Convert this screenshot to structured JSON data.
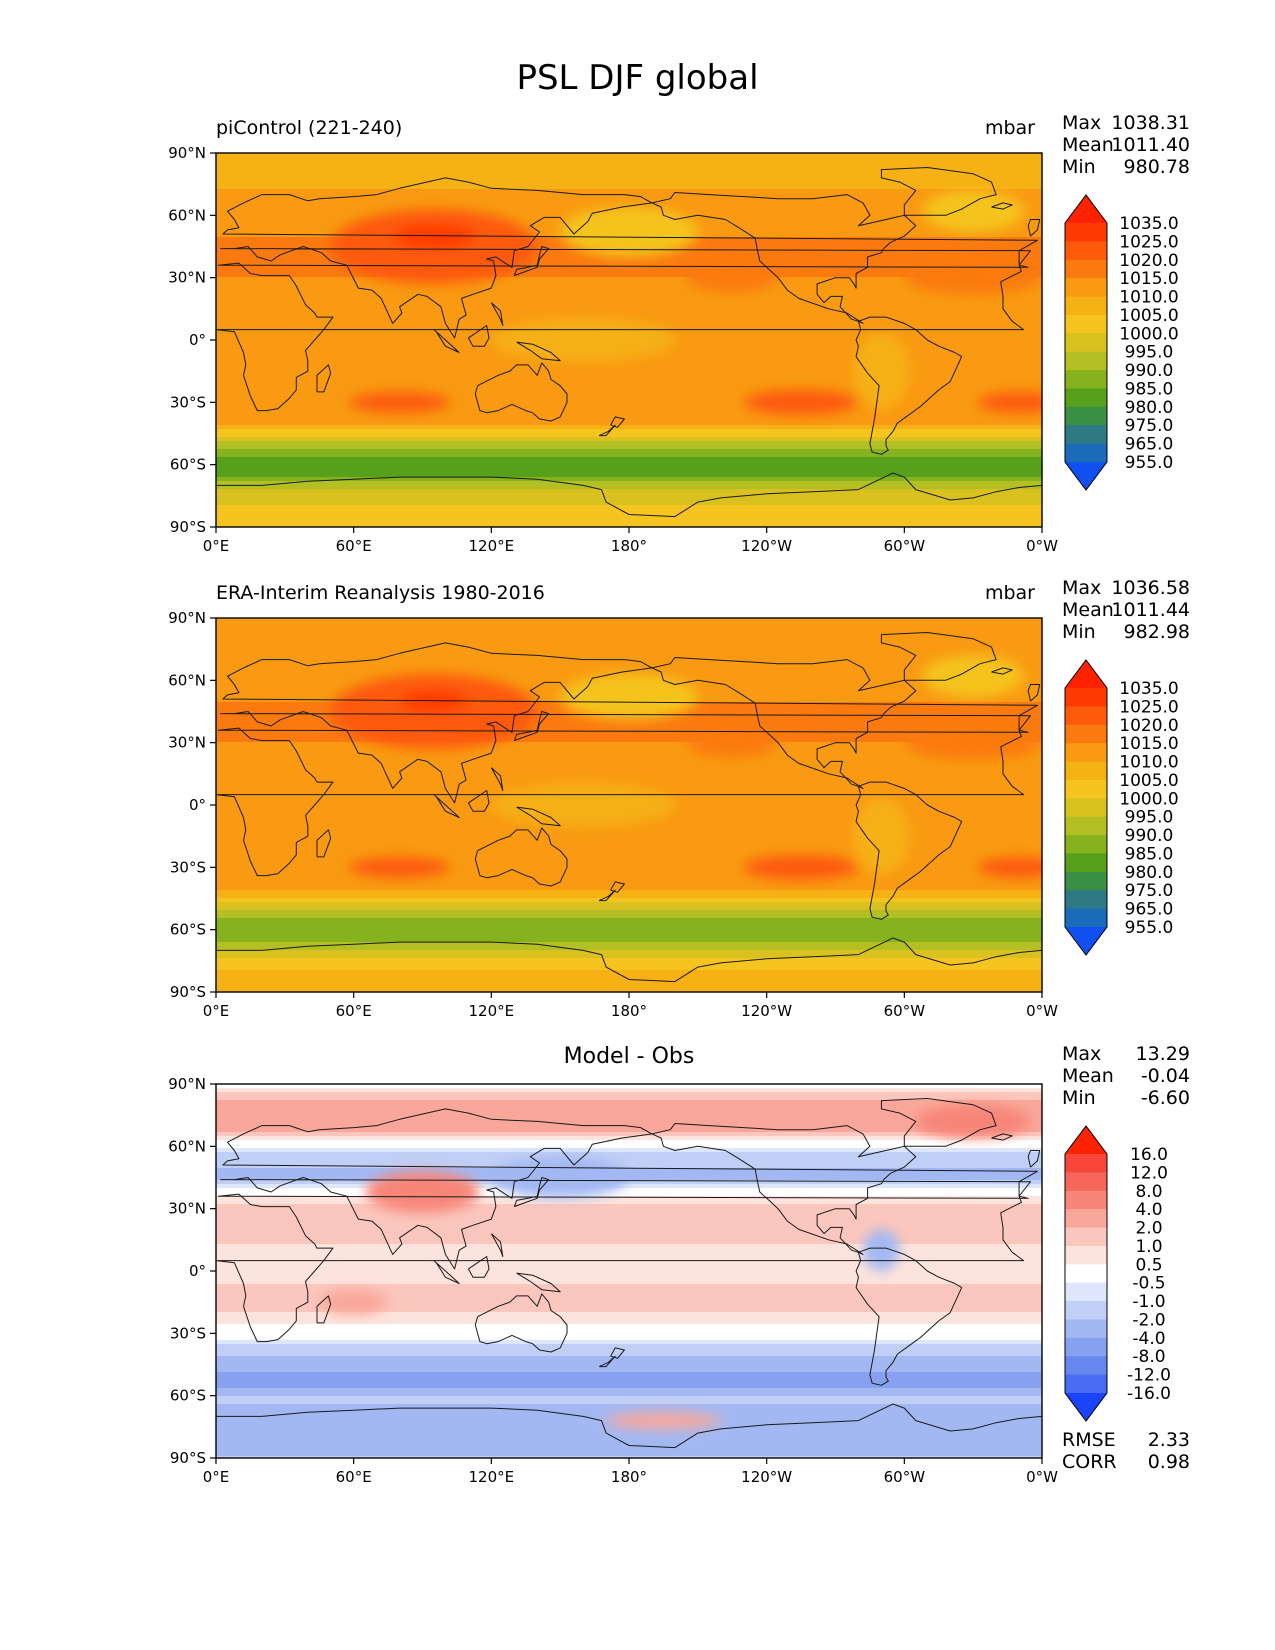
{
  "figure_title": "PSL DJF global",
  "chart_data": [
    {
      "type": "heatmap",
      "title": "piControl (221-240)",
      "units": "mbar",
      "variable": "PSL",
      "season": "DJF",
      "stats": {
        "max": "1038.31",
        "mean": "1011.40",
        "min": "980.78"
      },
      "xticks": [
        "0°E",
        "60°E",
        "120°E",
        "180°",
        "120°W",
        "60°W",
        "0°W"
      ],
      "yticks": [
        "90°N",
        "60°N",
        "30°N",
        "0°",
        "30°S",
        "60°S",
        "90°S"
      ],
      "xlim": [
        0,
        360
      ],
      "ylim": [
        -90,
        90
      ],
      "colorbar": {
        "levels": [
          "1035.0",
          "1025.0",
          "1020.0",
          "1015.0",
          "1010.0",
          "1005.0",
          "1000.0",
          "995.0",
          "990.0",
          "985.0",
          "980.0",
          "975.0",
          "965.0",
          "955.0"
        ],
        "colors": [
          "#ff2200",
          "#ff3a00",
          "#fd5a0a",
          "#fb7a10",
          "#f99a12",
          "#f6b114",
          "#f5c41f",
          "#d9c11f",
          "#b3bf22",
          "#86b21d",
          "#56a01b",
          "#3a8f45",
          "#2d7a84",
          "#1a6bb8",
          "#1050f0"
        ],
        "extend": "both"
      },
      "zonal_profile": [
        {
          "lat": 90,
          "v": 1005
        },
        {
          "lat": 80,
          "v": 1008
        },
        {
          "lat": 70,
          "v": 1011
        },
        {
          "lat": 60,
          "v": 1013
        },
        {
          "lat": 50,
          "v": 1015
        },
        {
          "lat": 40,
          "v": 1016
        },
        {
          "lat": 30,
          "v": 1015
        },
        {
          "lat": 20,
          "v": 1013
        },
        {
          "lat": 10,
          "v": 1011
        },
        {
          "lat": 0,
          "v": 1010
        },
        {
          "lat": -10,
          "v": 1011
        },
        {
          "lat": -20,
          "v": 1013
        },
        {
          "lat": -30,
          "v": 1015
        },
        {
          "lat": -40,
          "v": 1010
        },
        {
          "lat": -45,
          "v": 1003
        },
        {
          "lat": -50,
          "v": 993
        },
        {
          "lat": -55,
          "v": 986
        },
        {
          "lat": -60,
          "v": 983
        },
        {
          "lat": -65,
          "v": 985
        },
        {
          "lat": -70,
          "v": 992
        },
        {
          "lat": -75,
          "v": 998
        },
        {
          "lat": -80,
          "v": 1000
        },
        {
          "lat": -90,
          "v": 1001
        }
      ],
      "features": [
        {
          "lon": 95,
          "lat": 45,
          "rlon": 45,
          "rlat": 18,
          "v": 1024
        },
        {
          "lon": 95,
          "lat": 50,
          "rlon": 18,
          "rlat": 6,
          "v": 1033
        },
        {
          "lon": 180,
          "lat": 52,
          "rlon": 30,
          "rlat": 12,
          "v": 1000
        },
        {
          "lon": 330,
          "lat": 62,
          "rlon": 22,
          "rlat": 10,
          "v": 1004
        },
        {
          "lon": 160,
          "lat": 0,
          "rlon": 40,
          "rlat": 10,
          "v": 1008
        },
        {
          "lon": 290,
          "lat": -15,
          "rlon": 12,
          "rlat": 18,
          "v": 1006
        },
        {
          "lon": 80,
          "lat": -30,
          "rlon": 22,
          "rlat": 5,
          "v": 1020
        },
        {
          "lon": 255,
          "lat": -30,
          "rlon": 25,
          "rlat": 6,
          "v": 1020
        },
        {
          "lon": 350,
          "lat": -30,
          "rlon": 18,
          "rlat": 5,
          "v": 1020
        },
        {
          "lon": 225,
          "lat": 30,
          "rlon": 20,
          "rlat": 7,
          "v": 1019
        },
        {
          "lon": 330,
          "lat": 30,
          "rlon": 30,
          "rlat": 8,
          "v": 1019
        }
      ]
    },
    {
      "type": "heatmap",
      "title": "ERA-Interim Reanalysis 1980-2016",
      "units": "mbar",
      "variable": "PSL",
      "season": "DJF",
      "stats": {
        "max": "1036.58",
        "mean": "1011.44",
        "min": "982.98"
      },
      "xticks": [
        "0°E",
        "60°E",
        "120°E",
        "180°",
        "120°W",
        "60°W",
        "0°W"
      ],
      "yticks": [
        "90°N",
        "60°N",
        "30°N",
        "0°",
        "30°S",
        "60°S",
        "90°S"
      ],
      "xlim": [
        0,
        360
      ],
      "ylim": [
        -90,
        90
      ],
      "colorbar": {
        "levels": [
          "1035.0",
          "1025.0",
          "1020.0",
          "1015.0",
          "1010.0",
          "1005.0",
          "1000.0",
          "995.0",
          "990.0",
          "985.0",
          "980.0",
          "975.0",
          "965.0",
          "955.0"
        ],
        "colors": [
          "#ff2200",
          "#ff3a00",
          "#fd5a0a",
          "#fb7a10",
          "#f99a12",
          "#f6b114",
          "#f5c41f",
          "#d9c11f",
          "#b3bf22",
          "#86b21d",
          "#56a01b",
          "#3a8f45",
          "#2d7a84",
          "#1a6bb8",
          "#1050f0"
        ],
        "extend": "both"
      },
      "zonal_profile": [
        {
          "lat": 90,
          "v": 1010
        },
        {
          "lat": 80,
          "v": 1012
        },
        {
          "lat": 70,
          "v": 1011
        },
        {
          "lat": 60,
          "v": 1012
        },
        {
          "lat": 50,
          "v": 1015
        },
        {
          "lat": 40,
          "v": 1016
        },
        {
          "lat": 30,
          "v": 1015
        },
        {
          "lat": 20,
          "v": 1012
        },
        {
          "lat": 10,
          "v": 1010
        },
        {
          "lat": 0,
          "v": 1010
        },
        {
          "lat": -10,
          "v": 1011
        },
        {
          "lat": -20,
          "v": 1012
        },
        {
          "lat": -30,
          "v": 1015
        },
        {
          "lat": -40,
          "v": 1011
        },
        {
          "lat": -45,
          "v": 1004
        },
        {
          "lat": -50,
          "v": 995
        },
        {
          "lat": -55,
          "v": 989
        },
        {
          "lat": -60,
          "v": 986
        },
        {
          "lat": -65,
          "v": 989
        },
        {
          "lat": -70,
          "v": 996
        },
        {
          "lat": -75,
          "v": 1002
        },
        {
          "lat": -80,
          "v": 1006
        },
        {
          "lat": -90,
          "v": 1008
        }
      ],
      "features": [
        {
          "lon": 95,
          "lat": 45,
          "rlon": 45,
          "rlat": 18,
          "v": 1024
        },
        {
          "lon": 95,
          "lat": 50,
          "rlon": 15,
          "rlat": 5,
          "v": 1030
        },
        {
          "lon": 180,
          "lat": 52,
          "rlon": 30,
          "rlat": 11,
          "v": 1003
        },
        {
          "lon": 330,
          "lat": 62,
          "rlon": 22,
          "rlat": 10,
          "v": 1000
        },
        {
          "lon": 160,
          "lat": 0,
          "rlon": 40,
          "rlat": 10,
          "v": 1008
        },
        {
          "lon": 290,
          "lat": -15,
          "rlon": 12,
          "rlat": 18,
          "v": 1006
        },
        {
          "lon": 80,
          "lat": -30,
          "rlon": 22,
          "rlat": 5,
          "v": 1020
        },
        {
          "lon": 255,
          "lat": -30,
          "rlon": 25,
          "rlat": 6,
          "v": 1020
        },
        {
          "lon": 350,
          "lat": -30,
          "rlon": 18,
          "rlat": 5,
          "v": 1020
        },
        {
          "lon": 225,
          "lat": 30,
          "rlon": 20,
          "rlat": 7,
          "v": 1019
        },
        {
          "lon": 330,
          "lat": 30,
          "rlon": 30,
          "rlat": 8,
          "v": 1019
        }
      ]
    },
    {
      "type": "heatmap",
      "title": "Model - Obs",
      "units": "",
      "variable": "PSL",
      "season": "DJF",
      "stats": {
        "max": "13.29",
        "mean": "-0.04",
        "min": "-6.60",
        "rmse": "2.33",
        "corr": "0.98"
      },
      "xticks": [
        "0°E",
        "60°E",
        "120°E",
        "180°",
        "120°W",
        "60°W",
        "0°W"
      ],
      "yticks": [
        "90°N",
        "60°N",
        "30°N",
        "0°",
        "30°S",
        "60°S",
        "90°S"
      ],
      "xlim": [
        0,
        360
      ],
      "ylim": [
        -90,
        90
      ],
      "colorbar": {
        "levels": [
          "16.0",
          "12.0",
          "8.0",
          "4.0",
          "2.0",
          "1.0",
          "0.5",
          "-0.5",
          "-1.0",
          "-2.0",
          "-4.0",
          "-8.0",
          "-12.0",
          "-16.0"
        ],
        "colors": [
          "#ff2200",
          "#f8473a",
          "#f7665a",
          "#f78578",
          "#f9a79a",
          "#fbc6bd",
          "#fde3dd",
          "#ffffff",
          "#dde6fb",
          "#c0cff6",
          "#a3b8f3",
          "#86a1f0",
          "#6688ee",
          "#4a6cf2",
          "#1a44fb"
        ],
        "extend": "both"
      },
      "zonal_profile": [
        {
          "lat": 90,
          "v": -0.2
        },
        {
          "lat": 80,
          "v": 2.5
        },
        {
          "lat": 70,
          "v": 3
        },
        {
          "lat": 62,
          "v": 0
        },
        {
          "lat": 55,
          "v": -1.5
        },
        {
          "lat": 45,
          "v": -2.5
        },
        {
          "lat": 38,
          "v": 0.2
        },
        {
          "lat": 30,
          "v": 1.2
        },
        {
          "lat": 20,
          "v": 1.5
        },
        {
          "lat": 10,
          "v": 0.8
        },
        {
          "lat": 0,
          "v": 0.7
        },
        {
          "lat": -10,
          "v": 1.2
        },
        {
          "lat": -20,
          "v": 1.0
        },
        {
          "lat": -30,
          "v": 0.2
        },
        {
          "lat": -38,
          "v": -1.5
        },
        {
          "lat": -48,
          "v": -4
        },
        {
          "lat": -55,
          "v": -4.5
        },
        {
          "lat": -62,
          "v": -1.5
        },
        {
          "lat": -70,
          "v": -4
        },
        {
          "lat": -78,
          "v": -2.5
        },
        {
          "lat": -90,
          "v": -2
        }
      ],
      "features": [
        {
          "lon": 90,
          "lat": 38,
          "rlon": 25,
          "rlat": 10,
          "v": 6
        },
        {
          "lon": 330,
          "lat": 72,
          "rlon": 25,
          "rlat": 8,
          "v": 7
        },
        {
          "lon": 150,
          "lat": 45,
          "rlon": 30,
          "rlat": 10,
          "v": -4
        },
        {
          "lon": 60,
          "lat": -15,
          "rlon": 15,
          "rlat": 6,
          "v": 2.5
        },
        {
          "lon": 195,
          "lat": -72,
          "rlon": 25,
          "rlat": 4,
          "v": 2.5
        },
        {
          "lon": 290,
          "lat": 10,
          "rlon": 8,
          "rlat": 10,
          "v": -2.5
        }
      ]
    }
  ]
}
